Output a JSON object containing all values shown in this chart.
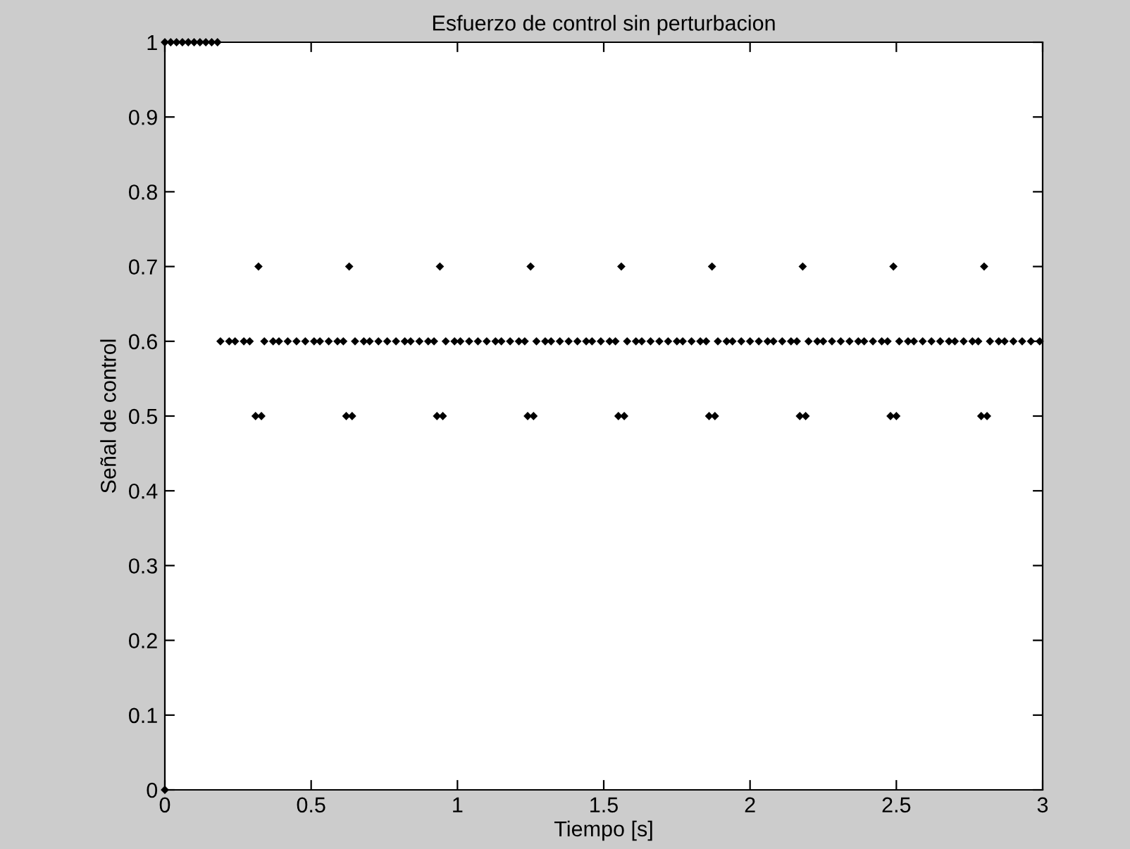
{
  "chart_data": {
    "type": "scatter",
    "title": "Esfuerzo de control sin perturbacion",
    "xlabel": "Tiempo [s]",
    "ylabel": "Señal de control",
    "xlim": [
      0,
      3
    ],
    "ylim": [
      0,
      1
    ],
    "xticks": [
      0,
      0.5,
      1,
      1.5,
      2,
      2.5,
      3
    ],
    "yticks": [
      0,
      0.1,
      0.2,
      0.3,
      0.4,
      0.5,
      0.6,
      0.7,
      0.8,
      0.9,
      1
    ],
    "grid": false,
    "legend": false,
    "marker": "diamond",
    "series": [
      {
        "color": "#000000",
        "x": [
          0
        ],
        "values": [
          0
        ]
      },
      {
        "color": "#000000",
        "x": [
          0,
          0.02,
          0.04,
          0.06,
          0.08,
          0.1,
          0.12,
          0.14,
          0.16,
          0.18
        ],
        "values": [
          1,
          1,
          1,
          1,
          1,
          1,
          1,
          1,
          1,
          1
        ]
      },
      {
        "color": "#000000",
        "x": [
          0.19,
          0.22,
          0.24,
          0.27,
          0.29,
          0.34,
          0.37,
          0.39,
          0.42,
          0.45,
          0.48,
          0.51,
          0.53,
          0.56,
          0.59,
          0.61,
          0.65,
          0.68,
          0.7,
          0.73,
          0.76,
          0.79,
          0.82,
          0.84,
          0.87,
          0.9,
          0.92,
          0.96,
          0.99,
          1.01,
          1.04,
          1.07,
          1.1,
          1.13,
          1.15,
          1.18,
          1.21,
          1.23,
          1.27,
          1.3,
          1.32,
          1.35,
          1.38,
          1.41,
          1.44,
          1.46,
          1.49,
          1.52,
          1.54,
          1.58,
          1.61,
          1.63,
          1.66,
          1.69,
          1.72,
          1.75,
          1.77,
          1.8,
          1.83,
          1.85,
          1.89,
          1.92,
          1.94,
          1.97,
          2.0,
          2.03,
          2.06,
          2.08,
          2.11,
          2.14,
          2.16,
          2.2,
          2.23,
          2.25,
          2.28,
          2.31,
          2.34,
          2.37,
          2.39,
          2.42,
          2.45,
          2.47,
          2.51,
          2.54,
          2.56,
          2.59,
          2.62,
          2.65,
          2.68,
          2.7,
          2.73,
          2.76,
          2.78,
          2.82,
          2.85,
          2.87,
          2.9,
          2.93,
          2.96,
          2.99
        ],
        "values": [
          0.6,
          0.6,
          0.6,
          0.6,
          0.6,
          0.6,
          0.6,
          0.6,
          0.6,
          0.6,
          0.6,
          0.6,
          0.6,
          0.6,
          0.6,
          0.6,
          0.6,
          0.6,
          0.6,
          0.6,
          0.6,
          0.6,
          0.6,
          0.6,
          0.6,
          0.6,
          0.6,
          0.6,
          0.6,
          0.6,
          0.6,
          0.6,
          0.6,
          0.6,
          0.6,
          0.6,
          0.6,
          0.6,
          0.6,
          0.6,
          0.6,
          0.6,
          0.6,
          0.6,
          0.6,
          0.6,
          0.6,
          0.6,
          0.6,
          0.6,
          0.6,
          0.6,
          0.6,
          0.6,
          0.6,
          0.6,
          0.6,
          0.6,
          0.6,
          0.6,
          0.6,
          0.6,
          0.6,
          0.6,
          0.6,
          0.6,
          0.6,
          0.6,
          0.6,
          0.6,
          0.6,
          0.6,
          0.6,
          0.6,
          0.6,
          0.6,
          0.6,
          0.6,
          0.6,
          0.6,
          0.6,
          0.6,
          0.6,
          0.6,
          0.6,
          0.6,
          0.6,
          0.6,
          0.6,
          0.6,
          0.6,
          0.6,
          0.6,
          0.6,
          0.6,
          0.6,
          0.6,
          0.6,
          0.6,
          0.6
        ]
      },
      {
        "color": "#000000",
        "x": [
          0.32,
          0.63,
          0.94,
          1.25,
          1.56,
          1.87,
          2.18,
          2.49,
          2.8
        ],
        "values": [
          0.7,
          0.7,
          0.7,
          0.7,
          0.7,
          0.7,
          0.7,
          0.7,
          0.7
        ]
      },
      {
        "color": "#000000",
        "x": [
          0.31,
          0.33,
          0.62,
          0.64,
          0.93,
          0.95,
          1.24,
          1.26,
          1.55,
          1.57,
          1.86,
          1.88,
          2.17,
          2.19,
          2.48,
          2.5,
          2.79,
          2.81
        ],
        "values": [
          0.5,
          0.5,
          0.5,
          0.5,
          0.5,
          0.5,
          0.5,
          0.5,
          0.5,
          0.5,
          0.5,
          0.5,
          0.5,
          0.5,
          0.5,
          0.5,
          0.5,
          0.5
        ]
      }
    ]
  }
}
